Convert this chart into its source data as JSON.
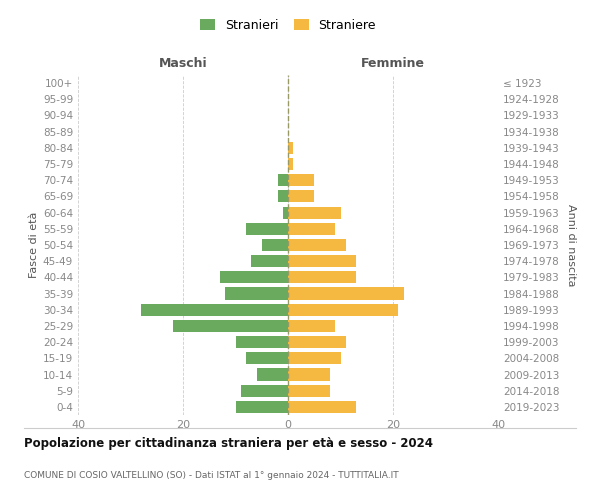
{
  "age_groups": [
    "0-4",
    "5-9",
    "10-14",
    "15-19",
    "20-24",
    "25-29",
    "30-34",
    "35-39",
    "40-44",
    "45-49",
    "50-54",
    "55-59",
    "60-64",
    "65-69",
    "70-74",
    "75-79",
    "80-84",
    "85-89",
    "90-94",
    "95-99",
    "100+"
  ],
  "birth_years": [
    "2019-2023",
    "2014-2018",
    "2009-2013",
    "2004-2008",
    "1999-2003",
    "1994-1998",
    "1989-1993",
    "1984-1988",
    "1979-1983",
    "1974-1978",
    "1969-1973",
    "1964-1968",
    "1959-1963",
    "1954-1958",
    "1949-1953",
    "1944-1948",
    "1939-1943",
    "1934-1938",
    "1929-1933",
    "1924-1928",
    "≤ 1923"
  ],
  "males": [
    10,
    9,
    6,
    8,
    10,
    22,
    28,
    12,
    13,
    7,
    5,
    8,
    1,
    2,
    2,
    0,
    0,
    0,
    0,
    0,
    0
  ],
  "females": [
    13,
    8,
    8,
    10,
    11,
    9,
    21,
    22,
    13,
    13,
    11,
    9,
    10,
    5,
    5,
    1,
    1,
    0,
    0,
    0,
    0
  ],
  "male_color": "#6aaa5e",
  "female_color": "#f5b942",
  "bg_color": "#ffffff",
  "grid_color": "#cccccc",
  "title": "Popolazione per cittadinanza straniera per età e sesso - 2024",
  "subtitle": "COMUNE DI COSIO VALTELLINO (SO) - Dati ISTAT al 1° gennaio 2024 - TUTTITALIA.IT",
  "label_maschi": "Maschi",
  "label_femmine": "Femmine",
  "ylabel_left": "Fasce di età",
  "ylabel_right": "Anni di nascita",
  "legend_male": "Stranieri",
  "legend_female": "Straniere",
  "xlim": 40,
  "tick_color": "#888888",
  "center_line_color": "#aaaaaa"
}
